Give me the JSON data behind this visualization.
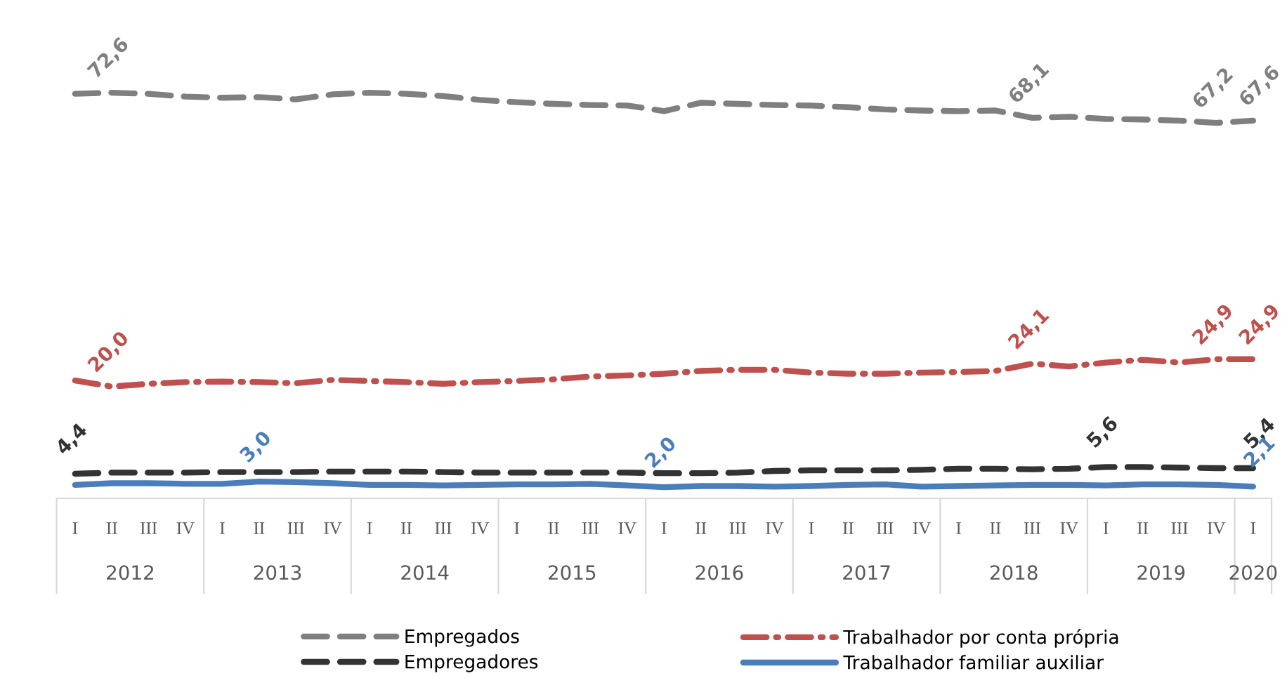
{
  "chart_data": {
    "type": "line",
    "categories": [
      "I",
      "II",
      "III",
      "IV",
      "I",
      "II",
      "III",
      "IV",
      "I",
      "II",
      "III",
      "IV",
      "I",
      "II",
      "III",
      "IV",
      "I",
      "II",
      "III",
      "IV",
      "I",
      "II",
      "III",
      "IV",
      "I",
      "II",
      "III",
      "IV",
      "I",
      "II",
      "III",
      "IV",
      "I"
    ],
    "annotations": [
      "2012",
      "2013",
      "2014",
      "2015",
      "2016",
      "2017",
      "2018",
      "2019",
      "2020"
    ],
    "series": [
      {
        "name": "Empregados",
        "color": "#7f7f7f",
        "line_style": "dashed",
        "values": [
          72.4,
          72.6,
          72.4,
          71.9,
          71.7,
          71.8,
          71.4,
          72.3,
          72.6,
          72.4,
          72.0,
          71.3,
          70.9,
          70.6,
          70.4,
          70.3,
          69.3,
          70.8,
          70.6,
          70.4,
          70.3,
          70.0,
          69.6,
          69.4,
          69.3,
          69.4,
          68.1,
          68.3,
          67.9,
          67.8,
          67.6,
          67.2,
          67.6
        ],
        "value_labels": [
          null,
          "72,6",
          null,
          null,
          null,
          null,
          null,
          null,
          null,
          null,
          null,
          null,
          null,
          null,
          null,
          null,
          null,
          null,
          null,
          null,
          null,
          null,
          null,
          null,
          null,
          null,
          "68,1",
          null,
          null,
          null,
          null,
          "67,2",
          "67,6"
        ]
      },
      {
        "name": "Trabalhador por conta própria",
        "color": "#c0504d",
        "line_style": "dashdot",
        "values": [
          21.1,
          20.0,
          20.5,
          20.8,
          20.9,
          20.8,
          20.6,
          21.2,
          21.0,
          20.8,
          20.5,
          20.8,
          21.0,
          21.3,
          21.8,
          22.0,
          22.3,
          22.8,
          23.0,
          23.0,
          22.5,
          22.3,
          22.3,
          22.5,
          22.6,
          22.8,
          24.1,
          23.6,
          24.3,
          24.8,
          24.3,
          24.9,
          24.9
        ],
        "value_labels": [
          null,
          "20,0",
          null,
          null,
          null,
          null,
          null,
          null,
          null,
          null,
          null,
          null,
          null,
          null,
          null,
          null,
          null,
          null,
          null,
          null,
          null,
          null,
          null,
          null,
          null,
          null,
          "24,1",
          null,
          null,
          null,
          null,
          "24,9",
          "24,9"
        ]
      },
      {
        "name": "Empregadores",
        "color": "#333333",
        "line_style": "dashed",
        "values": [
          4.4,
          4.6,
          4.6,
          4.6,
          4.7,
          4.7,
          4.7,
          4.8,
          4.8,
          4.8,
          4.7,
          4.6,
          4.6,
          4.6,
          4.6,
          4.6,
          4.5,
          4.5,
          4.6,
          4.9,
          5.0,
          5.0,
          5.0,
          5.1,
          5.3,
          5.3,
          5.2,
          5.3,
          5.6,
          5.6,
          5.5,
          5.4,
          5.4
        ],
        "value_labels": [
          "4,4",
          null,
          null,
          null,
          null,
          null,
          null,
          null,
          null,
          null,
          null,
          null,
          null,
          null,
          null,
          null,
          null,
          null,
          null,
          null,
          null,
          null,
          null,
          null,
          null,
          null,
          null,
          null,
          "5,6",
          null,
          null,
          null,
          "5,4"
        ]
      },
      {
        "name": "Trabalhador familiar auxiliar",
        "color": "#4a7ebb",
        "line_style": "solid",
        "values": [
          2.4,
          2.7,
          2.7,
          2.6,
          2.6,
          3.0,
          2.9,
          2.7,
          2.4,
          2.4,
          2.3,
          2.4,
          2.5,
          2.5,
          2.6,
          2.3,
          2.0,
          2.2,
          2.2,
          2.1,
          2.2,
          2.4,
          2.5,
          2.1,
          2.2,
          2.3,
          2.4,
          2.4,
          2.3,
          2.5,
          2.5,
          2.4,
          2.1
        ],
        "value_labels": [
          null,
          null,
          null,
          null,
          null,
          "3,0",
          null,
          null,
          null,
          null,
          null,
          null,
          null,
          null,
          null,
          null,
          "2,0",
          null,
          null,
          null,
          null,
          null,
          null,
          null,
          null,
          null,
          null,
          null,
          null,
          null,
          null,
          null,
          "2,1"
        ]
      }
    ],
    "legend": "bottom",
    "grid": false,
    "marker": "none"
  }
}
